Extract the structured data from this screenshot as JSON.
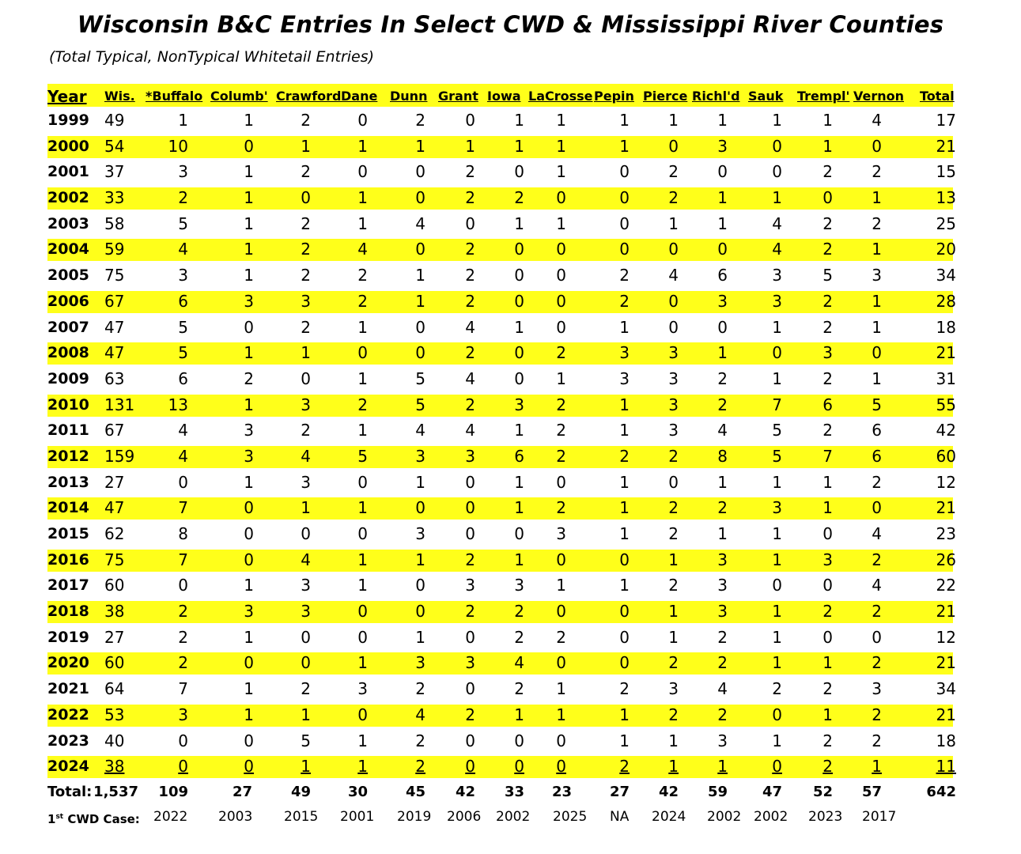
{
  "title": "Wisconsin B&C Entries In Select CWD & Mississippi River Counties",
  "subtitle": "(Total Typical, NonTypical Whitetail Entries)",
  "headers": [
    "Year",
    "Wis.",
    "*Buffalo",
    "Columb'",
    "Crawford",
    "Dane",
    "Dunn",
    "Grant",
    "Iowa",
    "LaCrosse",
    "Pepin",
    "Pierce",
    "Richl'd",
    "Sauk",
    "Trempl'",
    "Vernon",
    "Total"
  ],
  "rows": [
    {
      "year": "1999",
      "values": [
        "49",
        "1",
        "1",
        "2",
        "0",
        "2",
        "0",
        "1",
        "1",
        "1",
        "1",
        "1",
        "1",
        "1",
        "4",
        "17"
      ]
    },
    {
      "year": "2000",
      "values": [
        "54",
        "10",
        "0",
        "1",
        "1",
        "1",
        "1",
        "1",
        "1",
        "1",
        "0",
        "3",
        "0",
        "1",
        "0",
        "21"
      ]
    },
    {
      "year": "2001",
      "values": [
        "37",
        "3",
        "1",
        "2",
        "0",
        "0",
        "2",
        "0",
        "1",
        "0",
        "2",
        "0",
        "0",
        "2",
        "2",
        "15"
      ]
    },
    {
      "year": "2002",
      "values": [
        "33",
        "2",
        "1",
        "0",
        "1",
        "0",
        "2",
        "2",
        "0",
        "0",
        "2",
        "1",
        "1",
        "0",
        "1",
        "13"
      ]
    },
    {
      "year": "2003",
      "values": [
        "58",
        "5",
        "1",
        "2",
        "1",
        "4",
        "0",
        "1",
        "1",
        "0",
        "1",
        "1",
        "4",
        "2",
        "2",
        "25"
      ]
    },
    {
      "year": "2004",
      "values": [
        "59",
        "4",
        "1",
        "2",
        "4",
        "0",
        "2",
        "0",
        "0",
        "0",
        "0",
        "0",
        "4",
        "2",
        "1",
        "20"
      ]
    },
    {
      "year": "2005",
      "values": [
        "75",
        "3",
        "1",
        "2",
        "2",
        "1",
        "2",
        "0",
        "0",
        "2",
        "4",
        "6",
        "3",
        "5",
        "3",
        "34"
      ]
    },
    {
      "year": "2006",
      "values": [
        "67",
        "6",
        "3",
        "3",
        "2",
        "1",
        "2",
        "0",
        "0",
        "2",
        "0",
        "3",
        "3",
        "2",
        "1",
        "28"
      ]
    },
    {
      "year": "2007",
      "values": [
        "47",
        "5",
        "0",
        "2",
        "1",
        "0",
        "4",
        "1",
        "0",
        "1",
        "0",
        "0",
        "1",
        "2",
        "1",
        "18"
      ]
    },
    {
      "year": "2008",
      "values": [
        "47",
        "5",
        "1",
        "1",
        "0",
        "0",
        "2",
        "0",
        "2",
        "3",
        "3",
        "1",
        "0",
        "3",
        "0",
        "21"
      ]
    },
    {
      "year": "2009",
      "values": [
        "63",
        "6",
        "2",
        "0",
        "1",
        "5",
        "4",
        "0",
        "1",
        "3",
        "3",
        "2",
        "1",
        "2",
        "1",
        "31"
      ]
    },
    {
      "year": "2010",
      "values": [
        "131",
        "13",
        "1",
        "3",
        "2",
        "5",
        "2",
        "3",
        "2",
        "1",
        "3",
        "2",
        "7",
        "6",
        "5",
        "55"
      ]
    },
    {
      "year": "2011",
      "values": [
        "67",
        "4",
        "3",
        "2",
        "1",
        "4",
        "4",
        "1",
        "2",
        "1",
        "3",
        "4",
        "5",
        "2",
        "6",
        "42"
      ]
    },
    {
      "year": "2012",
      "values": [
        "159",
        "4",
        "3",
        "4",
        "5",
        "3",
        "3",
        "6",
        "2",
        "2",
        "2",
        "8",
        "5",
        "7",
        "6",
        "60"
      ]
    },
    {
      "year": "2013",
      "values": [
        "27",
        "0",
        "1",
        "3",
        "0",
        "1",
        "0",
        "1",
        "0",
        "1",
        "0",
        "1",
        "1",
        "1",
        "2",
        "12"
      ]
    },
    {
      "year": "2014",
      "values": [
        "47",
        "7",
        "0",
        "1",
        "1",
        "0",
        "0",
        "1",
        "2",
        "1",
        "2",
        "2",
        "3",
        "1",
        "0",
        "21"
      ]
    },
    {
      "year": "2015",
      "values": [
        "62",
        "8",
        "0",
        "0",
        "0",
        "3",
        "0",
        "0",
        "3",
        "1",
        "2",
        "1",
        "1",
        "0",
        "4",
        "23"
      ]
    },
    {
      "year": "2016",
      "values": [
        "75",
        "7",
        "0",
        "4",
        "1",
        "1",
        "2",
        "1",
        "0",
        "0",
        "1",
        "3",
        "1",
        "3",
        "2",
        "26"
      ]
    },
    {
      "year": "2017",
      "values": [
        "60",
        "0",
        "1",
        "3",
        "1",
        "0",
        "3",
        "3",
        "1",
        "1",
        "2",
        "3",
        "0",
        "0",
        "4",
        "22"
      ]
    },
    {
      "year": "2018",
      "values": [
        "38",
        "2",
        "3",
        "3",
        "0",
        "0",
        "2",
        "2",
        "0",
        "0",
        "1",
        "3",
        "1",
        "2",
        "2",
        "21"
      ]
    },
    {
      "year": "2019",
      "values": [
        "27",
        "2",
        "1",
        "0",
        "0",
        "1",
        "0",
        "2",
        "2",
        "0",
        "1",
        "2",
        "1",
        "0",
        "0",
        "12"
      ]
    },
    {
      "year": "2020",
      "values": [
        "60",
        "2",
        "0",
        "0",
        "1",
        "3",
        "3",
        "4",
        "0",
        "0",
        "2",
        "2",
        "1",
        "1",
        "2",
        "21"
      ]
    },
    {
      "year": "2021",
      "values": [
        "64",
        "7",
        "1",
        "2",
        "3",
        "2",
        "0",
        "2",
        "1",
        "2",
        "3",
        "4",
        "2",
        "2",
        "3",
        "34"
      ]
    },
    {
      "year": "2022",
      "values": [
        "53",
        "3",
        "1",
        "1",
        "0",
        "4",
        "2",
        "1",
        "1",
        "1",
        "2",
        "2",
        "0",
        "1",
        "2",
        "21"
      ]
    },
    {
      "year": "2023",
      "values": [
        "40",
        "0",
        "0",
        "5",
        "1",
        "2",
        "0",
        "0",
        "0",
        "1",
        "1",
        "3",
        "1",
        "2",
        "2",
        "18"
      ]
    },
    {
      "year": "2024",
      "values": [
        "38",
        "0",
        "0",
        "1",
        "1",
        "2",
        "0",
        "0",
        "0",
        "2",
        "1",
        "1",
        "0",
        "2",
        "1",
        "11"
      ]
    }
  ],
  "totals": {
    "label": "Total:",
    "values": [
      "1,537",
      "109",
      "27",
      "49",
      "30",
      "45",
      "42",
      "33",
      "23",
      "27",
      "42",
      "59",
      "47",
      "52",
      "57",
      "642"
    ]
  },
  "cwd": {
    "label_prefix": "1",
    "label_sup": "st",
    "label_suffix": " CWD Case:",
    "values": [
      "2022",
      "2003",
      "2015",
      "2001",
      "2019",
      "2006",
      "2002",
      "2025",
      "NA",
      "2024",
      "2002",
      "2002",
      "2023",
      "2017"
    ]
  },
  "colors": {
    "highlight": "#ffff1a",
    "text": "#000000",
    "background": "#ffffff"
  }
}
